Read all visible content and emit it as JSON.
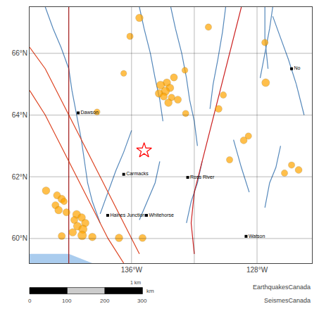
{
  "chart_data": {
    "type": "scatter",
    "xlim": [
      -142.5,
      -124.5
    ],
    "ylim": [
      59.2,
      67.5
    ],
    "xticks": [
      {
        "value": -136,
        "label": "136°W"
      },
      {
        "value": -128,
        "label": "128°W"
      }
    ],
    "yticks": [
      {
        "value": 60,
        "label": "60°N"
      },
      {
        "value": 62,
        "label": "62°N"
      },
      {
        "value": 64,
        "label": "64°N"
      },
      {
        "value": 66,
        "label": "66°N"
      }
    ],
    "lon_lines": [
      -140,
      -136,
      -132,
      -128
    ],
    "grid": true,
    "series": [
      {
        "type": "area",
        "color": "#aaccee",
        "paths": [
          [
            [
              -142.5,
              59.2
            ],
            [
              -142.5,
              59.5
            ],
            [
              -140.0,
              59.5
            ],
            [
              -139.5,
              59.4
            ],
            [
              -139.0,
              59.3
            ],
            [
              -138.5,
              59.2
            ],
            [
              -138.0,
              59.2
            ],
            [
              -137.5,
              59.2
            ],
            [
              -137.0,
              59.2
            ],
            [
              -136.5,
              59.2
            ],
            [
              -142.5,
              59.2
            ]
          ]
        ]
      },
      {
        "type": "line",
        "color": "#5588bb",
        "paths": [
          [
            [
              -141.5,
              67.5
            ],
            [
              -141.0,
              66.8
            ],
            [
              -140.5,
              66.2
            ],
            [
              -140.0,
              65.5
            ],
            [
              -139.8,
              64.8
            ],
            [
              -139.5,
              64.0
            ],
            [
              -139.2,
              63.2
            ],
            [
              -139.0,
              62.5
            ],
            [
              -138.8,
              61.8
            ],
            [
              -138.5,
              61.2
            ],
            [
              -138.0,
              60.5
            ]
          ],
          [
            [
              -135.5,
              67.5
            ],
            [
              -135.2,
              66.8
            ],
            [
              -134.8,
              66.0
            ],
            [
              -134.5,
              65.2
            ],
            [
              -134.2,
              64.5
            ],
            [
              -134.0,
              63.8
            ]
          ],
          [
            [
              -133.5,
              67.5
            ],
            [
              -133.2,
              66.8
            ],
            [
              -132.8,
              66.0
            ],
            [
              -132.5,
              65.2
            ],
            [
              -132.3,
              64.5
            ],
            [
              -132.0,
              63.8
            ],
            [
              -131.8,
              63.0
            ]
          ],
          [
            [
              -130.0,
              67.5
            ],
            [
              -130.2,
              66.7
            ],
            [
              -130.5,
              65.8
            ],
            [
              -130.8,
              65.0
            ],
            [
              -131.0,
              64.2
            ]
          ],
          [
            [
              -127.0,
              67.5
            ],
            [
              -127.2,
              66.8
            ],
            [
              -127.5,
              66.0
            ],
            [
              -127.8,
              65.2
            ]
          ],
          [
            [
              -136.0,
              63.5
            ],
            [
              -136.5,
              62.8
            ],
            [
              -137.0,
              62.2
            ],
            [
              -137.5,
              61.5
            ],
            [
              -138.0,
              60.8
            ]
          ],
          [
            [
              -134.2,
              62.5
            ],
            [
              -134.5,
              61.8
            ],
            [
              -135.0,
              61.2
            ],
            [
              -135.5,
              60.6
            ]
          ],
          [
            [
              -131.5,
              62.5
            ],
            [
              -131.8,
              61.8
            ],
            [
              -132.2,
              61.2
            ],
            [
              -132.5,
              60.5
            ]
          ],
          [
            [
              -126.5,
              63.0
            ],
            [
              -126.8,
              62.3
            ],
            [
              -127.2,
              61.8
            ],
            [
              -127.5,
              61.0
            ]
          ],
          [
            [
              -127.5,
              67.5
            ],
            [
              -127.5,
              66.5
            ],
            [
              -127.3,
              65.5
            ]
          ],
          [
            [
              -125.5,
              65.0
            ],
            [
              -126.0,
              65.8
            ],
            [
              -126.5,
              66.5
            ],
            [
              -127.0,
              67.2
            ]
          ],
          [
            [
              -128.5,
              61.5
            ],
            [
              -129.0,
              62.3
            ],
            [
              -129.5,
              63.2
            ]
          ],
          [
            [
              -125.0,
              64.0
            ],
            [
              -125.5,
              65.0
            ]
          ]
        ]
      },
      {
        "type": "line",
        "color": "#cc2222",
        "paths": [
          [
            [
              -140.0,
              59.2
            ],
            [
              -140.0,
              67.5
            ]
          ],
          [
            [
              -132.0,
              59.5
            ],
            [
              -132.2,
              60.5
            ],
            [
              -132.0,
              61.5
            ],
            [
              -131.5,
              62.5
            ],
            [
              -131.0,
              63.5
            ],
            [
              -130.5,
              64.5
            ],
            [
              -130.0,
              65.5
            ],
            [
              -129.5,
              66.5
            ],
            [
              -129.0,
              67.5
            ]
          ]
        ]
      },
      {
        "type": "line",
        "color": "#dd4422",
        "paths": [
          [
            [
              -142.5,
              66.2
            ],
            [
              -141.5,
              65.5
            ],
            [
              -140.5,
              64.5
            ],
            [
              -139.5,
              63.5
            ],
            [
              -138.5,
              62.5
            ],
            [
              -137.5,
              61.5
            ],
            [
              -136.5,
              60.5
            ],
            [
              -135.5,
              59.5
            ]
          ],
          [
            [
              -142.5,
              64.8
            ],
            [
              -141.5,
              64.0
            ],
            [
              -140.5,
              63.0
            ],
            [
              -139.5,
              62.0
            ],
            [
              -138.5,
              61.0
            ],
            [
              -137.5,
              60.0
            ],
            [
              -136.5,
              59.2
            ]
          ]
        ]
      },
      {
        "type": "scatter",
        "marker": "circle",
        "color": "#FFA500",
        "x": [
          -135.5,
          -136.1,
          -131.1,
          -127.5,
          -138.2,
          -136.5,
          -132.6,
          -133.3,
          -133.75,
          -134.15,
          -133.55,
          -133.85,
          -134.25,
          -133.95,
          -133.45,
          -133.05,
          -133.65,
          -127.45,
          -130.15,
          -130.45,
          -132.55,
          -128.55,
          -128.85,
          -129.75,
          -125.8,
          -125.35,
          -126.25,
          -141.45,
          -140.75,
          -140.45,
          -140.3,
          -140.85,
          -140.65,
          -140.15,
          -139.5,
          -139.18,
          -139.65,
          -138.95,
          -139.45,
          -139.1,
          -139.75,
          -140.45,
          -139.15,
          -138.5,
          -136.8,
          -135.3
        ],
        "y": [
          67.15,
          66.55,
          66.85,
          66.35,
          64.1,
          65.35,
          65.45,
          65.22,
          65.05,
          64.97,
          64.88,
          64.77,
          64.7,
          64.6,
          64.57,
          64.5,
          64.4,
          65.05,
          64.65,
          64.2,
          64.05,
          63.32,
          63.18,
          62.55,
          62.38,
          62.22,
          62.12,
          61.55,
          61.4,
          61.28,
          61.2,
          61.08,
          60.92,
          60.85,
          60.78,
          60.68,
          60.6,
          60.5,
          60.4,
          60.3,
          60.2,
          60.08,
          60.1,
          60.05,
          60.02,
          60.02
        ],
        "sizes": [
          60,
          45,
          45,
          45,
          40,
          38,
          38,
          55,
          62,
          70,
          62,
          75,
          62,
          55,
          48,
          55,
          62,
          65,
          45,
          52,
          45,
          45,
          52,
          45,
          45,
          52,
          45,
          62,
          55,
          62,
          45,
          55,
          62,
          55,
          68,
          62,
          55,
          62,
          68,
          75,
          62,
          55,
          82,
          62,
          62,
          55
        ]
      },
      {
        "type": "scatter",
        "marker": "star",
        "color": "red",
        "x": [
          -135.2
        ],
        "y": [
          62.85
        ]
      },
      {
        "type": "scatter",
        "marker": "square",
        "color": "black",
        "x": [
          -139.4,
          -136.5,
          -132.42,
          -137.52,
          -135.05,
          -128.7,
          -125.8
        ],
        "y": [
          64.07,
          62.08,
          61.98,
          60.75,
          60.75,
          60.07,
          65.5
        ],
        "labels": [
          "Dawson",
          "Carmacks",
          "Ross River",
          "Haines Junction",
          "Whitehorse",
          "Watson",
          "No"
        ]
      }
    ],
    "scale_bar": {
      "ticks": [
        0,
        100,
        200,
        300
      ],
      "unit": "km",
      "label": "1 km",
      "colors": [
        "black",
        "#cccccc"
      ]
    },
    "credits": [
      "EarthquakesCanada",
      "SeismesCanada"
    ]
  }
}
